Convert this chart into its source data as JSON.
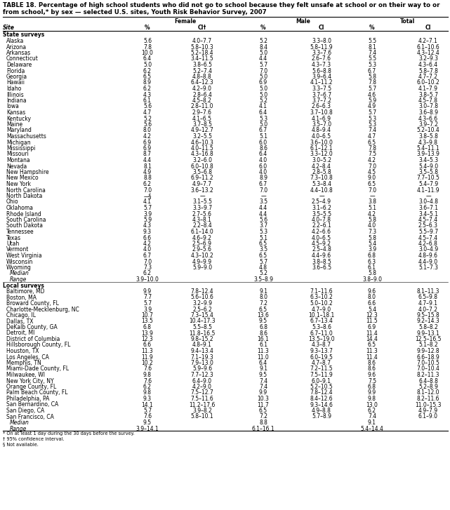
{
  "title_line1": "TABLE 18. Percentage of high school students who did not go to school because they felt unsafe at school or on their way to or",
  "title_line2": "from school,* by sex — selected U.S. sites, Youth Risk Behavior Survey, 2007",
  "headers": [
    "Site",
    "%",
    "CI†",
    "%",
    "CI",
    "%",
    "CI"
  ],
  "col_groups": [
    "Female",
    "Male",
    "Total"
  ],
  "state_section": "State surveys",
  "local_section": "Local surveys",
  "state_rows": [
    [
      "Alaska",
      "5.6",
      "4.0–7.7",
      "5.2",
      "3.3–8.0",
      "5.5",
      "4.2–7.1"
    ],
    [
      "Arizona",
      "7.8",
      "5.8–10.3",
      "8.4",
      "5.8–11.9",
      "8.1",
      "6.1–10.6"
    ],
    [
      "Arkansas",
      "10.0",
      "5.2–18.4",
      "5.0",
      "3.3–7.6",
      "7.4",
      "4.3–12.4"
    ],
    [
      "Connecticut",
      "6.4",
      "3.4–11.5",
      "4.4",
      "2.6–7.6",
      "5.5",
      "3.2–9.3"
    ],
    [
      "Delaware",
      "5.0",
      "3.8–6.5",
      "5.7",
      "4.3–7.3",
      "5.3",
      "4.3–6.4"
    ],
    [
      "Florida",
      "6.2",
      "5.2–7.4",
      "7.0",
      "5.6–8.8",
      "6.7",
      "5.8–7.8"
    ],
    [
      "Georgia",
      "6.5",
      "4.8–8.8",
      "5.0",
      "3.9–6.4",
      "5.8",
      "4.7–7.2"
    ],
    [
      "Hawaii",
      "8.9",
      "6.4–12.3",
      "6.9",
      "4.1–11.2",
      "7.8",
      "6.0–10.2"
    ],
    [
      "Idaho",
      "6.2",
      "4.2–9.0",
      "5.0",
      "3.3–7.5",
      "5.7",
      "4.1–7.9"
    ],
    [
      "Illinois",
      "4.3",
      "2.8–6.4",
      "5.0",
      "3.7–6.7",
      "4.6",
      "3.8–5.7"
    ],
    [
      "Indiana",
      "6.1",
      "4.5–8.2",
      "5.2",
      "3.7–7.2",
      "5.9",
      "4.5–7.8"
    ],
    [
      "Iowa",
      "5.6",
      "2.8–11.0",
      "4.1",
      "2.6–6.3",
      "4.9",
      "3.0–7.8"
    ],
    [
      "Kansas",
      "4.7",
      "2.9–7.6",
      "6.4",
      "3.7–10.8",
      "5.7",
      "3.6–8.9"
    ],
    [
      "Kentucky",
      "5.2",
      "4.1–6.5",
      "5.3",
      "4.1–6.9",
      "5.3",
      "4.3–6.6"
    ],
    [
      "Maine",
      "5.6",
      "3.7–8.5",
      "5.0",
      "3.5–7.0",
      "5.3",
      "3.9–7.2"
    ],
    [
      "Maryland",
      "8.0",
      "4.9–12.7",
      "6.7",
      "4.8–9.4",
      "7.4",
      "5.2–10.4"
    ],
    [
      "Massachusetts",
      "4.2",
      "3.2–5.5",
      "5.1",
      "4.0–6.5",
      "4.7",
      "3.8–5.8"
    ],
    [
      "Michigan",
      "6.9",
      "4.6–10.3",
      "6.0",
      "3.6–10.0",
      "6.5",
      "4.3–9.8"
    ],
    [
      "Mississippi",
      "6.9",
      "4.0–11.5",
      "8.6",
      "6.1–12.1",
      "7.8",
      "5.4–11.1"
    ],
    [
      "Missouri",
      "8.7",
      "4.3–16.8",
      "6.4",
      "3.3–12.0",
      "7.5",
      "3.9–13.9"
    ],
    [
      "Montana",
      "4.4",
      "3.2–6.0",
      "4.0",
      "3.0–5.2",
      "4.2",
      "3.4–5.3"
    ],
    [
      "Nevada",
      "8.1",
      "6.0–10.8",
      "6.0",
      "4.2–8.4",
      "7.0",
      "5.4–9.0"
    ],
    [
      "New Hampshire",
      "4.9",
      "3.5–6.8",
      "4.0",
      "2.8–5.8",
      "4.5",
      "3.5–5.8"
    ],
    [
      "New Mexico",
      "8.8",
      "6.9–11.2",
      "8.9",
      "7.3–10.8",
      "9.0",
      "7.7–10.5"
    ],
    [
      "New York",
      "6.2",
      "4.9–7.7",
      "6.7",
      "5.3–8.4",
      "6.5",
      "5.4–7.9"
    ],
    [
      "North Carolina",
      "7.0",
      "3.6–13.2",
      "7.0",
      "4.4–10.8",
      "7.0",
      "4.1–11.9"
    ],
    [
      "North Dakota",
      "—§",
      "—",
      "—",
      "—",
      "—",
      "—"
    ],
    [
      "Ohio",
      "4.1",
      "3.1–5.5",
      "3.5",
      "2.5–4.9",
      "3.8",
      "3.0–4.8"
    ],
    [
      "Oklahoma",
      "5.7",
      "3.3–9.7",
      "4.4",
      "3.1–6.2",
      "5.1",
      "3.6–7.1"
    ],
    [
      "Rhode Island",
      "3.9",
      "2.7–5.6",
      "4.4",
      "3.5–5.5",
      "4.2",
      "3.4–5.1"
    ],
    [
      "South Carolina",
      "5.9",
      "4.3–8.1",
      "5.6",
      "4.0–7.8",
      "5.8",
      "4.5–7.4"
    ],
    [
      "South Dakota",
      "4.3",
      "2.2–8.4",
      "3.7",
      "2.2–6.1",
      "4.0",
      "2.5–6.3"
    ],
    [
      "Tennessee",
      "9.3",
      "6.1–14.0",
      "5.3",
      "4.2–6.6",
      "7.3",
      "5.5–9.7"
    ],
    [
      "Texas",
      "6.6",
      "4.6–9.2",
      "5.1",
      "4.0–6.5",
      "5.8",
      "4.5–7.4"
    ],
    [
      "Utah",
      "4.2",
      "2.5–6.9",
      "6.5",
      "4.5–9.2",
      "5.4",
      "4.2–6.8"
    ],
    [
      "Vermont",
      "4.0",
      "2.9–5.6",
      "3.5",
      "2.5–4.8",
      "3.9",
      "3.0–4.9"
    ],
    [
      "West Virginia",
      "6.7",
      "4.3–10.2",
      "6.5",
      "4.4–9.6",
      "6.8",
      "4.8–9.6"
    ],
    [
      "Wisconsin",
      "7.0",
      "4.9–9.9",
      "5.7",
      "3.8–8.5",
      "6.3",
      "4.4–9.0"
    ],
    [
      "Wyoming",
      "7.3",
      "5.9–9.0",
      "4.8",
      "3.6–6.5",
      "6.1",
      "5.1–7.3"
    ]
  ],
  "state_summary": [
    [
      "Median",
      "6.2",
      "",
      "5.2",
      "",
      "5.8",
      ""
    ],
    [
      "Range",
      "3.9–10.0",
      "",
      "3.5–8.9",
      "",
      "3.8–9.0",
      ""
    ]
  ],
  "local_rows": [
    [
      "Baltimore, MD",
      "9.9",
      "7.8–12.4",
      "9.1",
      "7.1–11.6",
      "9.6",
      "8.1–11.3"
    ],
    [
      "Boston, MA",
      "7.7",
      "5.6–10.6",
      "8.0",
      "6.3–10.2",
      "8.0",
      "6.5–9.8"
    ],
    [
      "Broward County, FL",
      "5.7",
      "3.2–9.9",
      "7.2",
      "5.0–10.2",
      "6.6",
      "4.7–9.1"
    ],
    [
      "Charlotte-Mecklenburg, NC",
      "3.9",
      "2.5–6.2",
      "6.5",
      "4.7–9.0",
      "5.4",
      "4.0–7.2"
    ],
    [
      "Chicago, IL",
      "10.7",
      "7.3–15.4",
      "13.6",
      "10.1–18.1",
      "12.3",
      "9.5–15.8"
    ],
    [
      "Dallas, TX",
      "13.5",
      "10.4–17.3",
      "9.5",
      "6.7–13.4",
      "11.5",
      "9.2–14.3"
    ],
    [
      "DeKalb County, GA",
      "6.8",
      "5.5–8.5",
      "6.8",
      "5.3–8.6",
      "6.9",
      "5.8–8.2"
    ],
    [
      "Detroit, MI",
      "13.9",
      "11.8–16.5",
      "8.6",
      "6.7–11.0",
      "11.4",
      "9.9–13.1"
    ],
    [
      "District of Columbia",
      "12.3",
      "9.8–15.2",
      "16.1",
      "13.5–19.0",
      "14.4",
      "12.5–16.5"
    ],
    [
      "Hillsborough County, FL",
      "6.6",
      "4.8–9.1",
      "6.1",
      "4.3–8.7",
      "6.5",
      "5.1–8.2"
    ],
    [
      "Houston, TX",
      "11.3",
      "9.4–13.4",
      "11.3",
      "9.3–13.7",
      "11.3",
      "9.9–12.8"
    ],
    [
      "Los Angeles, CA",
      "11.9",
      "7.1–19.3",
      "11.0",
      "6.0–19.5",
      "11.4",
      "6.6–18.9"
    ],
    [
      "Memphis, TN",
      "10.2",
      "7.9–13.0",
      "6.4",
      "4.7–8.7",
      "8.6",
      "7.0–10.5"
    ],
    [
      "Miami-Dade County, FL",
      "7.6",
      "5.9–9.6",
      "9.1",
      "7.2–11.5",
      "8.6",
      "7.0–10.4"
    ],
    [
      "Milwaukee, WI",
      "9.8",
      "7.7–12.3",
      "9.5",
      "7.5–11.9",
      "9.6",
      "8.2–11.3"
    ],
    [
      "New York City, NY",
      "7.6",
      "6.4–9.0",
      "7.4",
      "6.0–9.1",
      "7.5",
      "6.4–8.8"
    ],
    [
      "Orange County, FL",
      "6.2",
      "4.2–9.0",
      "7.4",
      "5.2–10.5",
      "6.8",
      "5.2–8.9"
    ],
    [
      "Palm Beach County, FL",
      "9.8",
      "7.5–12.7",
      "9.9",
      "7.8–12.4",
      "9.9",
      "8.1–12.0"
    ],
    [
      "Philadelphia, PA",
      "9.3",
      "7.5–11.6",
      "10.3",
      "8.4–12.6",
      "9.8",
      "8.2–11.6"
    ],
    [
      "San Bernardino, CA",
      "14.1",
      "11.2–17.6",
      "11.7",
      "9.3–14.6",
      "13.0",
      "11.0–15.3"
    ],
    [
      "San Diego, CA",
      "5.7",
      "3.9–8.2",
      "6.5",
      "4.9–8.8",
      "6.2",
      "4.9–7.9"
    ],
    [
      "San Francisco, CA",
      "7.6",
      "5.8–10.1",
      "7.2",
      "5.7–8.9",
      "7.4",
      "6.1–9.0"
    ]
  ],
  "local_summary": [
    [
      "Median",
      "9.5",
      "",
      "8.8",
      "",
      "9.1",
      ""
    ],
    [
      "Range",
      "3.9–14.1",
      "",
      "6.1–16.1",
      "",
      "5.4–14.4",
      ""
    ]
  ],
  "footnotes": [
    "* On at least 1 day during the 30 days before the survey.",
    "† 95% confidence interval.",
    "§ Not available."
  ],
  "bg_color": "#ffffff",
  "text_color": "#000000",
  "font_size": 5.5,
  "title_font_size": 6.2
}
